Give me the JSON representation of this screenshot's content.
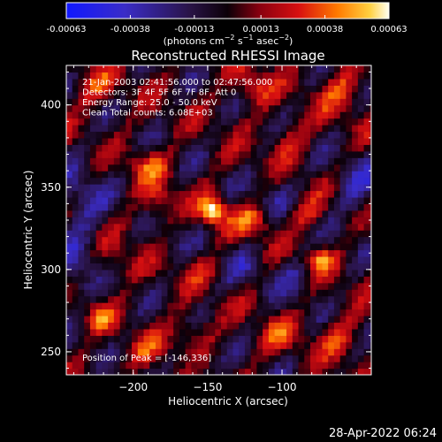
{
  "chart_data": {
    "type": "heatmap",
    "title": "Reconstructed RHESSI Image",
    "xlabel": "Heliocentric X (arcsec)",
    "ylabel": "Heliocentric Y (arcsec)",
    "xlim": [
      -245,
      -40
    ],
    "ylim": [
      236,
      424
    ],
    "x_ticks": [
      {
        "value": -200,
        "label": "−200"
      },
      {
        "value": -150,
        "label": "−150"
      },
      {
        "value": -100,
        "label": "−100"
      }
    ],
    "y_ticks": [
      {
        "value": 250,
        "label": "250"
      },
      {
        "value": 300,
        "label": "300"
      },
      {
        "value": 350,
        "label": "350"
      },
      {
        "value": 400,
        "label": "400"
      }
    ],
    "colorbar": {
      "min": -0.00063,
      "max": 0.00063,
      "tick_values": [
        -0.00063,
        -0.00038,
        -0.00013,
        0.00013,
        0.00038,
        0.00063
      ],
      "tick_labels": [
        "-0.00063",
        "-0.00038",
        "-0.00013",
        "0.00013",
        "0.00038",
        "0.00063"
      ],
      "unit_label": {
        "prefix": "(photons cm",
        "sup1": "−2",
        "mid1": " s",
        "sup2": "−1",
        "mid2": " asec",
        "sup3": "−2",
        "suffix": ")"
      }
    },
    "annotations": [
      "21-Jan-2003 02:41:56.000 to 02:47:56.000",
      "Detectors: 3F 4F 5F 6F 7F 8F, Att 0",
      "Energy Range: 25.0 - 50.0 keV",
      "Clean     Total counts: 6.08E+03"
    ],
    "peak_label": "Position of Peak = [-146,336]",
    "peak": [
      -146,
      336
    ],
    "grid": false,
    "sources": [
      {
        "x": -146,
        "y": 336,
        "value": 0.00063,
        "sx": 6,
        "sy": 6
      },
      {
        "x": -75,
        "y": 306,
        "value": 0.00044,
        "sx": 7,
        "sy": 5
      },
      {
        "x": -120,
        "y": 330,
        "value": 0.00032,
        "sx": 10,
        "sy": 6
      },
      {
        "x": -222,
        "y": 272,
        "value": 0.0003,
        "sx": 7,
        "sy": 6
      },
      {
        "x": -182,
        "y": 340,
        "value": 0.00026,
        "sx": 8,
        "sy": 10
      },
      {
        "x": -190,
        "y": 364,
        "value": 0.00028,
        "sx": 9,
        "sy": 7
      },
      {
        "x": -120,
        "y": 410,
        "value": 0.0003,
        "sx": 9,
        "sy": 8
      },
      {
        "x": -225,
        "y": 410,
        "value": 0.00026,
        "sx": 10,
        "sy": 8
      },
      {
        "x": -60,
        "y": 410,
        "value": 0.00028,
        "sx": 10,
        "sy": 10
      },
      {
        "x": -95,
        "y": 380,
        "value": 0.00022,
        "sx": 10,
        "sy": 8
      },
      {
        "x": -85,
        "y": 335,
        "value": 0.00024,
        "sx": 8,
        "sy": 7
      },
      {
        "x": -160,
        "y": 260,
        "value": 0.00026,
        "sx": 10,
        "sy": 8
      },
      {
        "x": -100,
        "y": 260,
        "value": 0.00024,
        "sx": 10,
        "sy": 8
      },
      {
        "x": -190,
        "y": 250,
        "value": 0.0002,
        "sx": 10,
        "sy": 7
      },
      {
        "x": -60,
        "y": 260,
        "value": 0.00024,
        "sx": 9,
        "sy": 9
      },
      {
        "x": -210,
        "y": 305,
        "value": 0.00018,
        "sx": 9,
        "sy": 8
      },
      {
        "x": -150,
        "y": 300,
        "value": 0.0002,
        "sx": 12,
        "sy": 6
      }
    ],
    "negative_regions": [
      {
        "x": -235,
        "y": 340,
        "value": -0.00026,
        "sx": 12,
        "sy": 16
      },
      {
        "x": -238,
        "y": 300,
        "value": -0.00022,
        "sx": 10,
        "sy": 14
      },
      {
        "x": -50,
        "y": 350,
        "value": -0.00026,
        "sx": 10,
        "sy": 14
      },
      {
        "x": -130,
        "y": 300,
        "value": -0.0002,
        "sx": 14,
        "sy": 8
      },
      {
        "x": -105,
        "y": 345,
        "value": -0.00016,
        "sx": 10,
        "sy": 8
      },
      {
        "x": -175,
        "y": 320,
        "value": -0.00014,
        "sx": 8,
        "sy": 8
      },
      {
        "x": -160,
        "y": 245,
        "value": -0.00016,
        "sx": 10,
        "sy": 8
      },
      {
        "x": -90,
        "y": 295,
        "value": -0.00018,
        "sx": 10,
        "sy": 10
      }
    ]
  },
  "footer": {
    "timestamp": "28-Apr-2022 06:24"
  }
}
